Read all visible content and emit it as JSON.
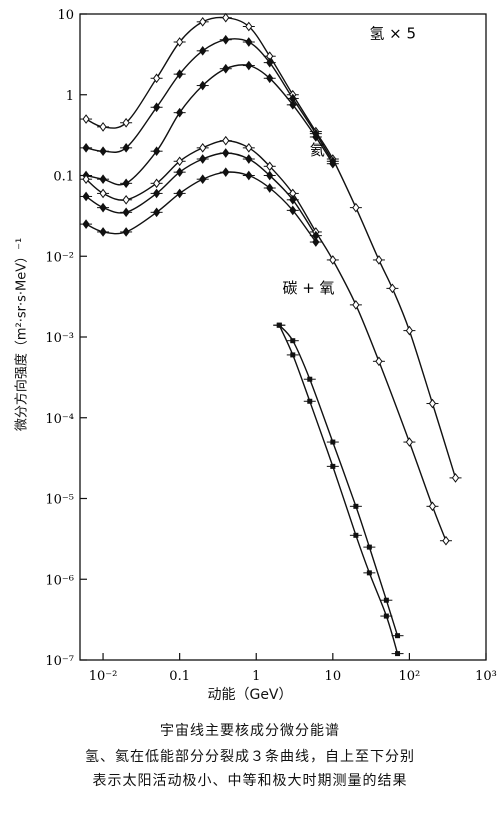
{
  "chart_data": {
    "type": "line",
    "log_x": true,
    "log_y": true,
    "xlabel": "动能（GeV）",
    "ylabel": "微分方向强度（m²·sr·s·MeV）⁻¹",
    "xlim": [
      0.005,
      1000
    ],
    "ylim": [
      1e-07,
      10
    ],
    "x_ticks": [
      {
        "v": 0.01,
        "label": "10⁻²"
      },
      {
        "v": 0.1,
        "label": "0.1"
      },
      {
        "v": 1,
        "label": "1"
      },
      {
        "v": 10,
        "label": "10"
      },
      {
        "v": 100,
        "label": "10²"
      },
      {
        "v": 1000,
        "label": "10³"
      }
    ],
    "y_ticks": [
      {
        "v": 10,
        "label": "10"
      },
      {
        "v": 1,
        "label": "1"
      },
      {
        "v": 0.1,
        "label": "0.1"
      },
      {
        "v": 0.01,
        "label": "10⁻²"
      },
      {
        "v": 0.001,
        "label": "10⁻³"
      },
      {
        "v": 0.0001,
        "label": "10⁻⁴"
      },
      {
        "v": 1e-05,
        "label": "10⁻⁵"
      },
      {
        "v": 1e-06,
        "label": "10⁻⁶"
      },
      {
        "v": 1e-07,
        "label": "10⁻⁷"
      }
    ],
    "annotations": [
      {
        "text": "氢 × 5",
        "x": 30,
        "y": 5
      },
      {
        "text": "氦",
        "x": 5,
        "y": 0.18
      },
      {
        "text": "碳 + 氧",
        "x": 2.2,
        "y": 0.0035
      }
    ],
    "series": [
      {
        "group": "hydrogen",
        "x": [
          0.006,
          0.01,
          0.02,
          0.05,
          0.1,
          0.2,
          0.4,
          0.8,
          1.5,
          3,
          6,
          10,
          20,
          40,
          60,
          100,
          200,
          400
        ],
        "y": [
          0.5,
          0.4,
          0.45,
          1.6,
          4.5,
          8,
          9,
          7,
          3,
          1,
          0.35,
          0.16,
          0.04,
          0.009,
          0.004,
          0.0012,
          0.00015,
          1.8e-05
        ]
      },
      {
        "group": "hydrogen",
        "x": [
          0.006,
          0.01,
          0.02,
          0.05,
          0.1,
          0.2,
          0.4,
          0.8,
          1.5,
          3,
          6,
          10
        ],
        "y": [
          0.22,
          0.2,
          0.22,
          0.7,
          1.8,
          3.5,
          4.8,
          4.5,
          2.5,
          0.9,
          0.33,
          0.15
        ]
      },
      {
        "group": "hydrogen",
        "x": [
          0.006,
          0.01,
          0.02,
          0.05,
          0.1,
          0.2,
          0.4,
          0.8,
          1.5,
          3,
          6,
          10
        ],
        "y": [
          0.1,
          0.09,
          0.08,
          0.2,
          0.6,
          1.3,
          2.1,
          2.3,
          1.6,
          0.75,
          0.3,
          0.14
        ]
      },
      {
        "group": "helium",
        "x": [
          0.006,
          0.01,
          0.02,
          0.05,
          0.1,
          0.2,
          0.4,
          0.8,
          1.5,
          3,
          6,
          10,
          20,
          40,
          100,
          200,
          300
        ],
        "y": [
          0.09,
          0.06,
          0.05,
          0.08,
          0.15,
          0.22,
          0.27,
          0.22,
          0.13,
          0.06,
          0.02,
          0.009,
          0.0025,
          0.0005,
          5e-05,
          8e-06,
          3e-06
        ]
      },
      {
        "group": "helium",
        "x": [
          0.006,
          0.01,
          0.02,
          0.05,
          0.1,
          0.2,
          0.4,
          0.8,
          1.5,
          3,
          6
        ],
        "y": [
          0.055,
          0.04,
          0.035,
          0.06,
          0.11,
          0.16,
          0.19,
          0.16,
          0.1,
          0.05,
          0.018
        ]
      },
      {
        "group": "helium",
        "x": [
          0.006,
          0.01,
          0.02,
          0.05,
          0.1,
          0.2,
          0.4,
          0.8,
          1.5,
          3,
          6
        ],
        "y": [
          0.025,
          0.02,
          0.02,
          0.035,
          0.06,
          0.09,
          0.11,
          0.1,
          0.07,
          0.037,
          0.015
        ]
      },
      {
        "group": "carbon_oxygen",
        "x": [
          2,
          3,
          5,
          10,
          20,
          30,
          50,
          70
        ],
        "y": [
          0.0014,
          0.0006,
          0.00016,
          2.5e-05,
          3.5e-06,
          1.2e-06,
          3.5e-07,
          1.2e-07
        ]
      },
      {
        "group": "carbon_oxygen",
        "x": [
          2,
          3,
          5,
          10,
          20,
          30,
          50,
          70
        ],
        "y": [
          0.0014,
          0.0009,
          0.0003,
          5e-05,
          8e-06,
          2.5e-06,
          5.5e-07,
          2e-07
        ]
      }
    ]
  },
  "axes": {
    "xlabel": "动能（GeV）",
    "ylabel": "微分方向强度（m²·sr·s·MeV）⁻¹"
  },
  "caption": {
    "line1": "宇宙线主要核成分微分能谱",
    "line2": "氢、氦在低能部分分裂成３条曲线，自上至下分别",
    "line3": "表示太阳活动极小、中等和极大时期测量的结果"
  }
}
